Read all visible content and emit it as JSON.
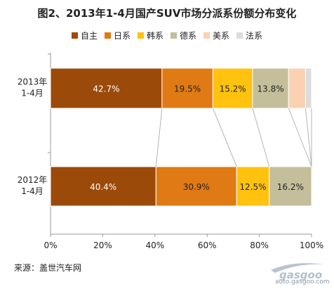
{
  "title": "图2、2013年1-4月国产SUV市场分派系份额分布变化",
  "source_text": "来源：盖世汽车网",
  "watermark": {
    "brand": "gasgoo",
    "tagline": "盖世汽车网",
    "url": "auto.gasgoo.com"
  },
  "colors": {
    "自主": "#9C4A09",
    "日系": "#E07A14",
    "韩系": "#FFC20E",
    "德系": "#C4BE9A",
    "美系": "#FAD2B2",
    "法系": "#DCDCDC"
  },
  "chart_data": {
    "type": "bar",
    "stacked": true,
    "orientation": "horizontal",
    "title": "图2、2013年1-4月国产SUV市场分派系份额分布变化",
    "categories": [
      "2013年\n1-4月",
      "2012年\n1-4月"
    ],
    "series": [
      {
        "name": "自主",
        "values": [
          42.7,
          40.4
        ]
      },
      {
        "name": "日系",
        "values": [
          19.5,
          30.9
        ]
      },
      {
        "name": "韩系",
        "values": [
          15.2,
          12.5
        ]
      },
      {
        "name": "德系",
        "values": [
          13.8,
          16.2
        ]
      },
      {
        "name": "美系",
        "values": [
          6.5,
          0
        ]
      },
      {
        "name": "法系",
        "values": [
          2.3,
          0
        ]
      }
    ],
    "data_labels": [
      [
        "42.7%",
        "19.5%",
        "15.2%",
        "13.8%",
        "",
        ""
      ],
      [
        "40.4%",
        "30.9%",
        "12.5%",
        "16.2%",
        "",
        ""
      ]
    ],
    "xlim": [
      0,
      100
    ],
    "x_ticks": [
      "0%",
      "20%",
      "40%",
      "60%",
      "80%",
      "100%"
    ],
    "legend_position": "top",
    "grid": false,
    "connector_lines": true
  }
}
